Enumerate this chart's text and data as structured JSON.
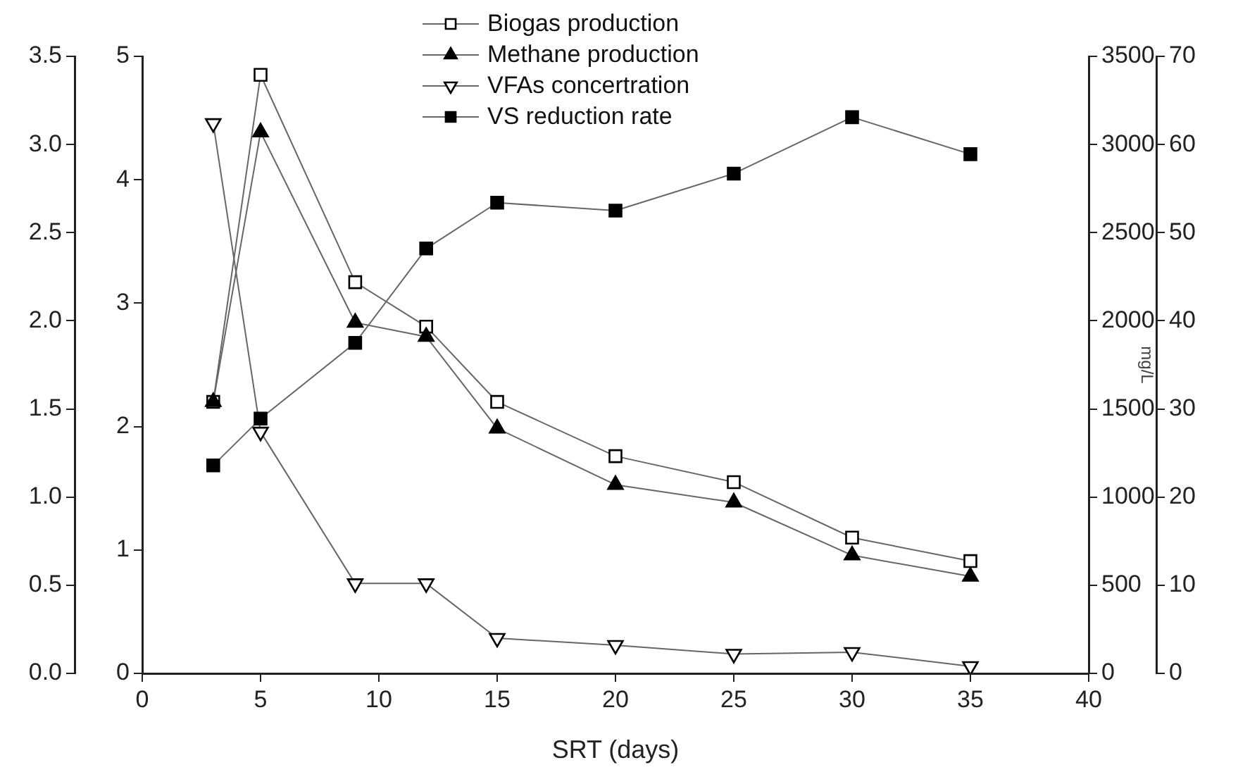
{
  "chart_data": [
    {
      "type": "line",
      "x": [
        3,
        5,
        9,
        12,
        15,
        20,
        25,
        30,
        35
      ],
      "xlim": [
        0,
        40
      ],
      "xticks": [
        0,
        5,
        10,
        15,
        20,
        25,
        30,
        35,
        40
      ],
      "tick_labels": "y",
      "ylim": [
        0,
        3.5
      ],
      "yticks": [
        {
          "value": 0,
          "label": "0.0"
        },
        {
          "value": 0.5,
          "label": "0.5"
        },
        {
          "value": 1,
          "label": "1.0"
        },
        {
          "value": 1.5,
          "label": "1.5"
        },
        {
          "value": 2,
          "label": "2.0"
        },
        {
          "value": 2.5,
          "label": "2.5"
        },
        {
          "value": 3,
          "label": "3.0"
        },
        {
          "value": 3.5,
          "label": "3.5"
        }
      ],
      "y2lim": [
        0,
        5
      ],
      "y2ticks": [
        0,
        1,
        2,
        3,
        4,
        5
      ],
      "grid": false,
      "legend": "top",
      "line_style": "solid",
      "series": [
        {
          "name": "Biogas production",
          "color": "#ffffff",
          "axis": "y2",
          "marker": "square",
          "values": [
            2.2,
            4.85,
            3.17,
            2.81,
            2.2,
            1.76,
            1.55,
            1.1,
            0.91
          ]
        },
        {
          "name": "Methane production",
          "color": "#000000",
          "marker": "triangle",
          "values": [
            1.54,
            3.07,
            1.99,
            1.91,
            1.39,
            1.07,
            0.97,
            0.67,
            0.55
          ]
        }
      ]
    },
    {
      "type": "line",
      "x": [
        3,
        5,
        9,
        12,
        15,
        20,
        25,
        30,
        35
      ],
      "xlabel": "SRT (days)",
      "xlim": [
        0,
        40
      ],
      "xticks": [
        0,
        5,
        10,
        15,
        20,
        25,
        30,
        35,
        40
      ],
      "ylim": [
        0,
        3500
      ],
      "yticks": [
        0,
        500,
        1000,
        1500,
        2000,
        2500,
        3000,
        3500
      ],
      "ylabel": "mg/L",
      "y2lim": [
        0,
        70
      ],
      "y2ticks": [
        0,
        10,
        20,
        30,
        40,
        50,
        60,
        70
      ],
      "grid": false,
      "legend": "top",
      "line_style": "solid",
      "series": [
        {
          "name": "VFAs concertration",
          "color": "#ffffff",
          "marker": "triangle-down",
          "values": [
            3120,
            1370,
            510,
            510,
            200,
            160,
            110,
            120,
            40
          ]
        },
        {
          "name": "VS reduction rate",
          "color": "#000000",
          "axis": "y2",
          "marker": "square",
          "values": [
            23.6,
            28.9,
            37.5,
            48.2,
            53.4,
            52.5,
            56.7,
            63.1,
            58.9
          ]
        }
      ]
    }
  ]
}
